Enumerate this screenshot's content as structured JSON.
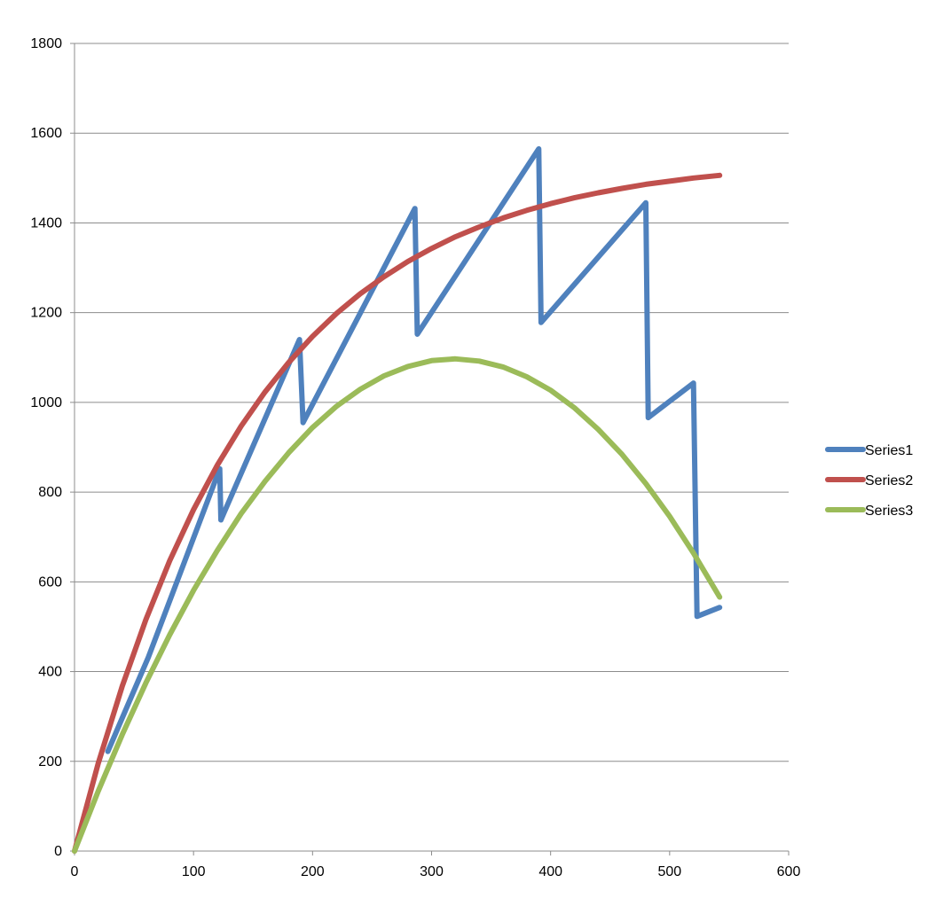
{
  "chart_data": {
    "type": "line",
    "title": "",
    "xlabel": "",
    "ylabel": "",
    "xlim": [
      0,
      600
    ],
    "ylim": [
      0,
      1800
    ],
    "x_ticks": [
      0,
      100,
      200,
      300,
      400,
      500,
      600
    ],
    "y_ticks": [
      0,
      200,
      400,
      600,
      800,
      1000,
      1200,
      1400,
      1600,
      1800
    ],
    "grid": "horizontal major gridlines",
    "legend_position": "right",
    "series": [
      {
        "name": "Series1",
        "color": "#4f81bd",
        "points": [
          [
            28,
            222
          ],
          [
            62,
            432
          ],
          [
            122,
            852
          ],
          [
            123,
            738
          ],
          [
            189,
            1140
          ],
          [
            192,
            955
          ],
          [
            286,
            1432
          ],
          [
            288,
            1152
          ],
          [
            390,
            1565
          ],
          [
            392,
            1178
          ],
          [
            480,
            1445
          ],
          [
            482,
            966
          ],
          [
            520,
            1043
          ],
          [
            523,
            523
          ],
          [
            542,
            543
          ]
        ]
      },
      {
        "name": "Series2",
        "color": "#c0504d",
        "points": [
          [
            0,
            0
          ],
          [
            20,
            196
          ],
          [
            40,
            367
          ],
          [
            60,
            516
          ],
          [
            80,
            647
          ],
          [
            100,
            761
          ],
          [
            120,
            860
          ],
          [
            140,
            947
          ],
          [
            160,
            1023
          ],
          [
            180,
            1089
          ],
          [
            200,
            1147
          ],
          [
            220,
            1198
          ],
          [
            240,
            1242
          ],
          [
            260,
            1280
          ],
          [
            280,
            1314
          ],
          [
            300,
            1343
          ],
          [
            320,
            1369
          ],
          [
            340,
            1391
          ],
          [
            360,
            1411
          ],
          [
            380,
            1428
          ],
          [
            400,
            1443
          ],
          [
            420,
            1456
          ],
          [
            440,
            1467
          ],
          [
            460,
            1477
          ],
          [
            480,
            1486
          ],
          [
            500,
            1493
          ],
          [
            520,
            1500
          ],
          [
            542,
            1506
          ]
        ]
      },
      {
        "name": "Series3",
        "color": "#9bbb59",
        "points": [
          [
            0,
            0
          ],
          [
            20,
            134
          ],
          [
            40,
            259
          ],
          [
            60,
            375
          ],
          [
            80,
            482
          ],
          [
            100,
            581
          ],
          [
            120,
            670
          ],
          [
            140,
            752
          ],
          [
            160,
            824
          ],
          [
            180,
            888
          ],
          [
            200,
            944
          ],
          [
            220,
            991
          ],
          [
            240,
            1029
          ],
          [
            260,
            1059
          ],
          [
            280,
            1080
          ],
          [
            300,
            1093
          ],
          [
            320,
            1097
          ],
          [
            340,
            1092
          ],
          [
            360,
            1079
          ],
          [
            380,
            1057
          ],
          [
            400,
            1027
          ],
          [
            420,
            988
          ],
          [
            440,
            940
          ],
          [
            460,
            884
          ],
          [
            480,
            819
          ],
          [
            500,
            746
          ],
          [
            520,
            664
          ],
          [
            542,
            566
          ]
        ]
      }
    ]
  }
}
